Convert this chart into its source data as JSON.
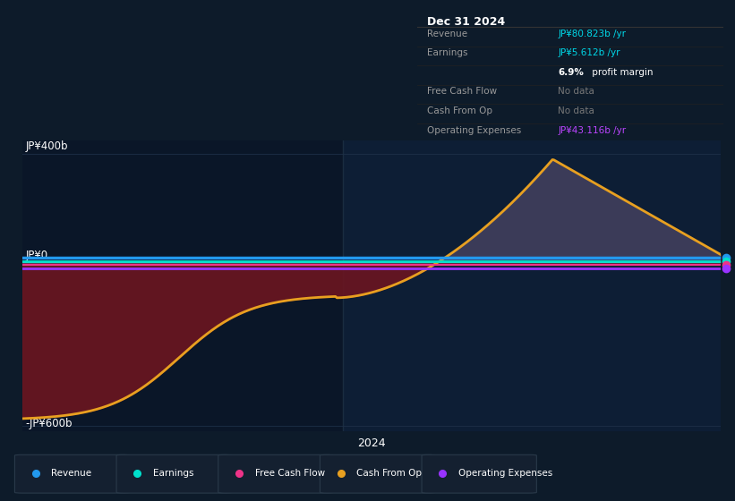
{
  "bg_color": "#0d1b2a",
  "chart_bg": "#0a1628",
  "chart_bg_right": "#0d1e35",
  "title": "Dec 31 2024",
  "y_label_400": "JP¥400b",
  "y_label_0": "JP¥0",
  "y_label_neg600": "-JP¥600b",
  "x_label": "2024",
  "ylim": [
    -620,
    450
  ],
  "xlim": [
    0,
    100
  ],
  "divider_x": 46,
  "revenue_color": "#2299ee",
  "earnings_color": "#00e0cc",
  "free_cash_color": "#ee3388",
  "cash_op_color": "#e8a020",
  "op_exp_color": "#9933ff",
  "fill_negative_color": "#6b1520",
  "fill_positive_color": "#5a5070",
  "zero_line_color": "#ffffff",
  "grid_line_color": "#1e3048",
  "legend": [
    {
      "label": "Revenue",
      "color": "#2299ee"
    },
    {
      "label": "Earnings",
      "color": "#00e0cc"
    },
    {
      "label": "Free Cash Flow",
      "color": "#ee3388"
    },
    {
      "label": "Cash From Op",
      "color": "#e8a020"
    },
    {
      "label": "Operating Expenses",
      "color": "#9933ff"
    }
  ],
  "info_rows": [
    {
      "label": "Revenue",
      "value": "JP¥80.823b",
      "unit": " /yr",
      "color": "#00d8e8",
      "type": "value"
    },
    {
      "label": "Earnings",
      "value": "JP¥5.612b",
      "unit": " /yr",
      "color": "#00d8e8",
      "type": "value"
    },
    {
      "label": "",
      "value": "6.9%",
      "unit": " profit margin",
      "color": "#ffffff",
      "type": "margin"
    },
    {
      "label": "Free Cash Flow",
      "value": "No data",
      "unit": "",
      "color": "#777777",
      "type": "nodata"
    },
    {
      "label": "Cash From Op",
      "value": "No data",
      "unit": "",
      "color": "#777777",
      "type": "nodata"
    },
    {
      "label": "Operating Expenses",
      "value": "JP¥43.116b",
      "unit": " /yr",
      "color": "#bb44ff",
      "type": "value"
    }
  ]
}
